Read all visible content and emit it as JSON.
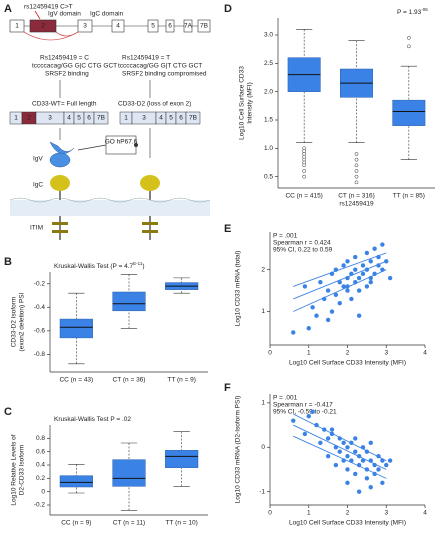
{
  "panel_labels": [
    "A",
    "B",
    "C",
    "D",
    "E",
    "F"
  ],
  "panel_a": {
    "snp": "rs12459419 C>T",
    "igv_domain": "IgV domain",
    "igc_domain": "IgC domain",
    "exons": [
      "1",
      "2",
      "3",
      "4",
      "5",
      "6",
      "7A",
      "7B"
    ],
    "c_allele": "Rs12459419 = C",
    "c_seq": "tccccacag/GG G|C CTG GCT",
    "c_note": "SRSF2 binding",
    "t_allele": "Rs12459419 = T",
    "t_seq": "tccccacag/GG G|T CTG GCT",
    "t_note": "SRSF2 binding compromised",
    "wt": "CD33-WT= Full length",
    "d2": "CD33-D2 (loss of exon 2)",
    "wt_exons": [
      "1",
      "2",
      "3",
      "4",
      "5",
      "6",
      "7B"
    ],
    "d2_exons": [
      "1",
      "3",
      "4",
      "5",
      "6",
      "7B"
    ],
    "drug": "GO hP67.6",
    "igv": "IgV",
    "igc": "IgC",
    "itim": "ITIM"
  },
  "chart_data": [
    {
      "type": "box",
      "annotation": "Kruskal-Wallis Test (P = 4.7",
      "annotation_sup": "E-11",
      "annotation_end": ")",
      "y_title": [
        "CD33-D2 Isoform",
        "(exon2 deletion) PSI"
      ],
      "categories": [
        "CC (n = 43)",
        "CT (n = 36)",
        "TT (n = 9)"
      ],
      "ylim": [
        -0.95,
        -0.1
      ],
      "yticks": [
        -0.8,
        -0.6,
        -0.4,
        -0.2
      ],
      "color": "#3b82e6",
      "boxes": [
        {
          "whisker_low": -0.88,
          "q1": -0.66,
          "median": -0.57,
          "q3": -0.5,
          "whisker_high": -0.28,
          "outliers": []
        },
        {
          "whisker_low": -0.58,
          "q1": -0.43,
          "median": -0.37,
          "q3": -0.27,
          "whisker_high": -0.12,
          "outliers": []
        },
        {
          "whisker_low": -0.28,
          "q1": -0.25,
          "median": -0.22,
          "q3": -0.19,
          "whisker_high": -0.15,
          "outliers": []
        }
      ]
    },
    {
      "type": "box",
      "annotation": "Kruskal-Wallis Test P = .02",
      "y_title": [
        "Log10 Relative Levels of",
        "D2-CD33 Isoform"
      ],
      "categories": [
        "CC (n = 9)",
        "CT (n = 11)",
        "TT (n = 10)"
      ],
      "ylim": [
        -0.35,
        1.0
      ],
      "yticks": [
        -0.2,
        0,
        0.2,
        0.4,
        0.6,
        0.8
      ],
      "color": "#3b82e6",
      "boxes": [
        {
          "whisker_low": -0.02,
          "q1": 0.07,
          "median": 0.14,
          "q3": 0.24,
          "whisker_high": 0.41,
          "outliers": []
        },
        {
          "whisker_low": -0.28,
          "q1": 0.08,
          "median": 0.2,
          "q3": 0.48,
          "whisker_high": 0.73,
          "outliers": []
        },
        {
          "whisker_low": 0.08,
          "q1": 0.36,
          "median": 0.53,
          "q3": 0.62,
          "whisker_high": 0.9,
          "outliers": []
        }
      ]
    },
    {
      "type": "box",
      "annotation": "P = 1.93",
      "annotation_sup": "-06",
      "y_title": [
        "Log10 Cell Surface CD33",
        "Intensity (MFI)"
      ],
      "x_title": "rs12459419",
      "categories": [
        "CC (n = 415)",
        "CT (n = 316)",
        "TT (n = 85)"
      ],
      "ylim": [
        0.3,
        3.3
      ],
      "yticks": [
        {
          "value": 0.5,
          "label": "0.5"
        },
        {
          "value": 1,
          "label": "1.0"
        },
        {
          "value": 1.5,
          "label": "1.5"
        },
        {
          "value": 2,
          "label": "2.0"
        },
        {
          "value": 2.5,
          "label": "2.5"
        },
        {
          "value": 3,
          "label": "3.0"
        }
      ],
      "color": "#3b82e6",
      "boxes": [
        {
          "whisker_low": 1.1,
          "q1": 2.0,
          "median": 2.3,
          "q3": 2.6,
          "whisker_high": 3.1,
          "outliers": [
            1.0,
            0.95,
            0.9,
            0.85,
            0.8,
            0.75,
            0.7,
            0.6,
            0.5
          ]
        },
        {
          "whisker_low": 1.1,
          "q1": 1.9,
          "median": 2.15,
          "q3": 2.4,
          "whisker_high": 2.9,
          "outliers": [
            0.9,
            0.8,
            0.7,
            0.6,
            0.5,
            0.4
          ]
        },
        {
          "whisker_low": 0.8,
          "q1": 1.4,
          "median": 1.65,
          "q3": 1.85,
          "whisker_high": 2.45,
          "outliers": [
            2.8,
            2.95
          ]
        }
      ]
    },
    {
      "type": "scatter",
      "annotations": [
        "P = .001",
        "Spearman r = 0.424",
        "95% CI, 0.22 to 0.59"
      ],
      "x_title": "Log10 Cell Surface CD33 Intensity  (MFI)",
      "y_title": [
        "Log10 CD33 mRNA (total)"
      ],
      "xlim": [
        0,
        4
      ],
      "xticks": [
        0,
        1,
        2,
        3,
        4
      ],
      "ylim": [
        0.2,
        2.9
      ],
      "yticks": [
        1,
        2
      ],
      "color": "#3b82e6",
      "x": [
        0.6,
        0.9,
        1.1,
        1.2,
        1.3,
        1.4,
        1.5,
        1.5,
        1.6,
        1.7,
        1.7,
        1.8,
        1.8,
        1.9,
        1.9,
        2.0,
        2.0,
        2.0,
        2.1,
        2.1,
        2.2,
        2.2,
        2.2,
        2.3,
        2.3,
        2.4,
        2.4,
        2.5,
        2.5,
        2.5,
        2.6,
        2.6,
        2.7,
        2.7,
        2.8,
        2.8,
        2.9,
        2.9,
        3.0,
        3.1,
        1.0,
        1.6,
        2.3,
        2.6,
        2.0
      ],
      "y": [
        0.5,
        1.6,
        1.1,
        0.9,
        1.7,
        1.3,
        1.5,
        0.8,
        1.9,
        1.4,
        2.0,
        1.2,
        1.7,
        1.6,
        2.1,
        1.8,
        1.5,
        2.2,
        1.9,
        1.3,
        2.0,
        1.7,
        2.3,
        1.8,
        1.5,
        2.1,
        1.9,
        2.0,
        2.4,
        1.6,
        2.2,
        1.8,
        2.5,
        1.9,
        2.1,
        2.3,
        2.0,
        2.6,
        2.2,
        1.8,
        0.6,
        1.0,
        0.9,
        1.7,
        1.6
      ],
      "lines": [
        {
          "x": [
            0.6,
            3.0
          ],
          "y": [
            1.3,
            2.2
          ]
        },
        {
          "x": [
            0.6,
            3.0
          ],
          "y": [
            1.6,
            2.4
          ]
        },
        {
          "x": [
            0.6,
            3.0
          ],
          "y": [
            1.0,
            2.0
          ]
        }
      ]
    },
    {
      "type": "scatter",
      "annotations": [
        "P = .001",
        "Spearman r = -0.417",
        "95% CI, -0.59 to -0.21"
      ],
      "x_title": "Log10 Cell Surface CD33 Intensity  (MFI)",
      "y_title": [
        "Log10 CD33 mRNA (D2-Isoform PSI)"
      ],
      "xlim": [
        0,
        4
      ],
      "xticks": [
        0,
        1,
        2,
        3,
        4
      ],
      "ylim": [
        -1.3,
        1.2
      ],
      "yticks": [
        -1,
        0,
        1
      ],
      "color": "#3b82e6",
      "x": [
        0.6,
        0.9,
        1.1,
        1.2,
        1.3,
        1.4,
        1.5,
        1.5,
        1.6,
        1.7,
        1.7,
        1.8,
        1.8,
        1.9,
        1.9,
        2.0,
        2.0,
        2.0,
        2.1,
        2.1,
        2.2,
        2.2,
        2.2,
        2.3,
        2.3,
        2.4,
        2.4,
        2.5,
        2.5,
        2.5,
        2.6,
        2.6,
        2.7,
        2.7,
        2.8,
        2.8,
        2.9,
        2.9,
        3.0,
        3.1,
        1.0,
        1.6,
        2.3,
        2.6,
        2.0
      ],
      "y": [
        0.6,
        0.3,
        0.8,
        0.5,
        0.1,
        0.4,
        -0.2,
        0.2,
        0.3,
        0.0,
        -0.4,
        0.2,
        -0.1,
        0.1,
        -0.3,
        0.0,
        -0.2,
        -0.5,
        0.1,
        -0.3,
        -0.1,
        -0.6,
        0.2,
        -0.2,
        -0.4,
        0.0,
        -0.3,
        -0.5,
        -0.1,
        -0.7,
        -0.3,
        0.1,
        -0.4,
        -0.6,
        -0.2,
        -0.5,
        -0.3,
        -0.8,
        -0.4,
        -0.3,
        0.7,
        0.4,
        -1.0,
        -0.9,
        -0.8
      ],
      "lines": [
        {
          "x": [
            0.6,
            3.0
          ],
          "y": [
            0.5,
            -0.5
          ]
        },
        {
          "x": [
            0.6,
            3.0
          ],
          "y": [
            0.75,
            -0.3
          ]
        },
        {
          "x": [
            0.6,
            3.0
          ],
          "y": [
            0.25,
            -0.7
          ]
        }
      ]
    }
  ]
}
